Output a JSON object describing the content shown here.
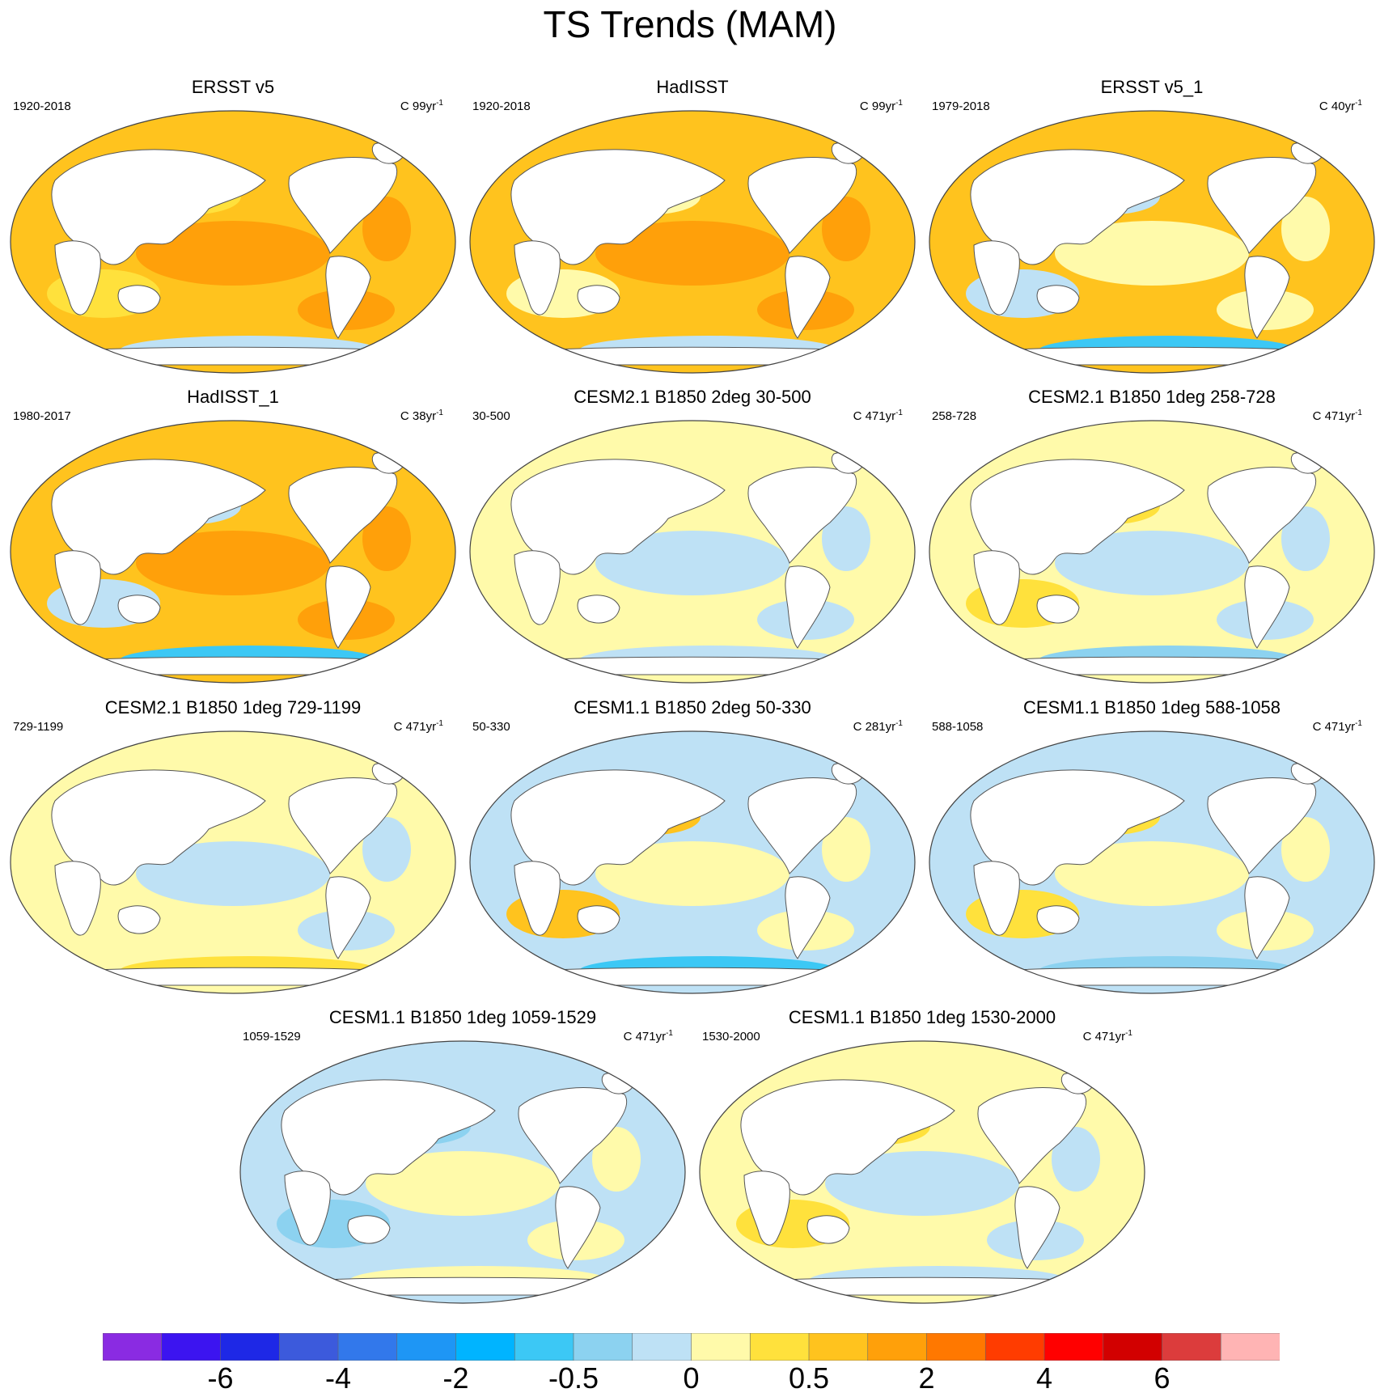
{
  "title": "TS Trends (MAM)",
  "panels": [
    {
      "title": "ERSST v5",
      "period": "1920-2018",
      "unit": "C 99yr",
      "unit_exp": "-1",
      "style": "warm"
    },
    {
      "title": "HadISST",
      "period": "1920-2018",
      "unit": "C 99yr",
      "unit_exp": "-1",
      "style": "warm2"
    },
    {
      "title": "ERSST v5_1",
      "period": "1979-2018",
      "unit": "C 40yr",
      "unit_exp": "-1",
      "style": "recent"
    },
    {
      "title": "HadISST_1",
      "period": "1980-2017",
      "unit": "C 38yr",
      "unit_exp": "-1",
      "style": "recent2"
    },
    {
      "title": "CESM2.1 B1850 2deg 30-500",
      "period": "30-500",
      "unit": "C 471yr",
      "unit_exp": "-1",
      "style": "neutral"
    },
    {
      "title": "CESM2.1 B1850 1deg 258-728",
      "period": "258-728",
      "unit": "C 471yr",
      "unit_exp": "-1",
      "style": "neutral2"
    },
    {
      "title": "CESM2.1 B1850 1deg 729-1199",
      "period": "729-1199",
      "unit": "C 471yr",
      "unit_exp": "-1",
      "style": "neutral3"
    },
    {
      "title": "CESM1.1 B1850 2deg 50-330",
      "period": "50-330",
      "unit": "C 281yr",
      "unit_exp": "-1",
      "style": "model"
    },
    {
      "title": "CESM1.1 B1850 1deg 588-1058",
      "period": "588-1058",
      "unit": "C 471yr",
      "unit_exp": "-1",
      "style": "model2"
    },
    {
      "title": "CESM1.1 B1850 1deg 1059-1529",
      "period": "1059-1529",
      "unit": "C 471yr",
      "unit_exp": "-1",
      "style": "cool"
    },
    {
      "title": "CESM1.1 B1850 1deg 1530-2000",
      "period": "1530-2000",
      "unit": "C 471yr",
      "unit_exp": "-1",
      "style": "neutral4"
    }
  ],
  "colorbar": {
    "colors": [
      "#8a2be2",
      "#3c14f0",
      "#1e28e6",
      "#3c5adc",
      "#3278eb",
      "#1e96f5",
      "#00b4ff",
      "#3cc8f5",
      "#8cd2f0",
      "#bee1f5",
      "#fffaaa",
      "#ffe13c",
      "#ffc31e",
      "#ffa00a",
      "#ff7800",
      "#ff3c00",
      "#ff0000",
      "#d20000",
      "#dc3c3c",
      "#ffb4b4"
    ],
    "labels": [
      "-6",
      "-4",
      "-2",
      "-0.5",
      "0",
      "0.5",
      "2",
      "4",
      "6"
    ]
  }
}
